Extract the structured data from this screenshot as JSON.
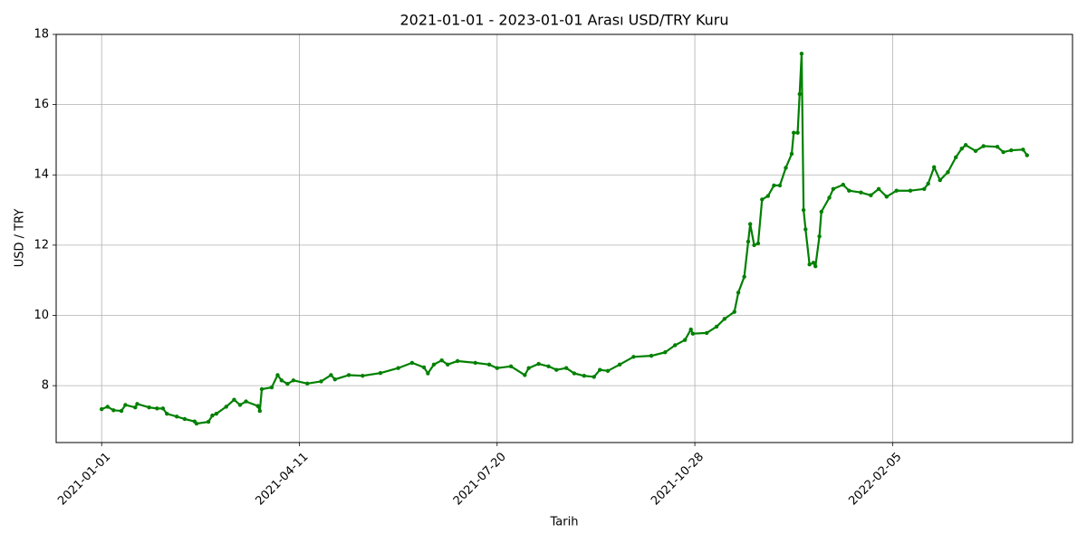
{
  "chart_data": {
    "type": "line",
    "title": "2021-01-01 - 2023-01-01 Arası USD/TRY Kuru",
    "xlabel": "Tarih",
    "ylabel": "USD / TRY",
    "x": [
      "2021-01-01",
      "2021-01-04",
      "2021-01-07",
      "2021-01-11",
      "2021-01-13",
      "2021-01-18",
      "2021-01-19",
      "2021-01-25",
      "2021-01-29",
      "2021-02-01",
      "2021-02-03",
      "2021-02-08",
      "2021-02-12",
      "2021-02-17",
      "2021-02-18",
      "2021-02-24",
      "2021-02-26",
      "2021-02-28",
      "2021-03-05",
      "2021-03-09",
      "2021-03-12",
      "2021-03-15",
      "2021-03-21",
      "2021-03-22",
      "2021-03-23",
      "2021-03-28",
      "2021-03-31",
      "2021-04-02",
      "2021-04-05",
      "2021-04-08",
      "2021-04-15",
      "2021-04-22",
      "2021-04-27",
      "2021-04-29",
      "2021-05-06",
      "2021-05-13",
      "2021-05-22",
      "2021-05-31",
      "2021-06-07",
      "2021-06-13",
      "2021-06-15",
      "2021-06-18",
      "2021-06-22",
      "2021-06-25",
      "2021-06-30",
      "2021-07-09",
      "2021-07-16",
      "2021-07-20",
      "2021-07-27",
      "2021-08-03",
      "2021-08-05",
      "2021-08-10",
      "2021-08-15",
      "2021-08-19",
      "2021-08-24",
      "2021-08-28",
      "2021-09-02",
      "2021-09-07",
      "2021-09-10",
      "2021-09-14",
      "2021-09-20",
      "2021-09-27",
      "2021-10-06",
      "2021-10-13",
      "2021-10-18",
      "2021-10-23",
      "2021-10-26",
      "2021-10-27",
      "2021-11-03",
      "2021-11-08",
      "2021-11-12",
      "2021-11-17",
      "2021-11-19",
      "2021-11-22",
      "2021-11-24",
      "2021-11-25",
      "2021-11-27",
      "2021-11-29",
      "2021-12-01",
      "2021-12-04",
      "2021-12-07",
      "2021-12-10",
      "2021-12-13",
      "2021-12-16",
      "2021-12-17",
      "2021-12-19",
      "2021-12-20",
      "2021-12-21",
      "2021-12-22",
      "2021-12-23",
      "2021-12-25",
      "2021-12-27",
      "2021-12-28",
      "2021-12-30",
      "2021-12-31",
      "2022-01-04",
      "2022-01-06",
      "2022-01-11",
      "2022-01-14",
      "2022-01-20",
      "2022-01-25",
      "2022-01-29",
      "2022-02-02",
      "2022-02-07",
      "2022-02-14",
      "2022-02-21",
      "2022-02-23",
      "2022-02-26",
      "2022-03-01",
      "2022-03-05",
      "2022-03-09",
      "2022-03-12",
      "2022-03-14",
      "2022-03-19",
      "2022-03-23",
      "2022-03-30",
      "2022-04-02",
      "2022-04-06",
      "2022-04-12",
      "2022-04-14"
    ],
    "series": [
      {
        "color": "#008000",
        "values": [
          7.33,
          7.4,
          7.3,
          7.28,
          7.45,
          7.38,
          7.48,
          7.38,
          7.35,
          7.35,
          7.2,
          7.12,
          7.05,
          6.98,
          6.92,
          6.97,
          7.15,
          7.2,
          7.4,
          7.6,
          7.45,
          7.55,
          7.42,
          7.28,
          7.9,
          7.95,
          8.3,
          8.15,
          8.05,
          8.15,
          8.06,
          8.12,
          8.3,
          8.18,
          8.3,
          8.28,
          8.36,
          8.5,
          8.65,
          8.52,
          8.35,
          8.6,
          8.72,
          8.6,
          8.7,
          8.65,
          8.6,
          8.5,
          8.55,
          8.3,
          8.5,
          8.62,
          8.55,
          8.45,
          8.5,
          8.35,
          8.28,
          8.25,
          8.45,
          8.42,
          8.6,
          8.82,
          8.85,
          8.95,
          9.15,
          9.3,
          9.6,
          9.48,
          9.5,
          9.68,
          9.9,
          10.1,
          10.65,
          11.1,
          12.1,
          12.6,
          12.0,
          12.05,
          13.3,
          13.4,
          13.7,
          13.7,
          14.2,
          14.6,
          15.2,
          15.2,
          16.3,
          17.45,
          13.0,
          12.45,
          11.45,
          11.5,
          11.4,
          12.25,
          12.95,
          13.35,
          13.6,
          13.72,
          13.55,
          13.5,
          13.42,
          13.6,
          13.38,
          13.55,
          13.55,
          13.6,
          13.75,
          14.22,
          13.85,
          14.08,
          14.5,
          14.75,
          14.85,
          14.68,
          14.82,
          14.8,
          14.65,
          14.7,
          14.72,
          14.56
        ]
      }
    ],
    "xlim": [
      "2020-12-09",
      "2022-05-07"
    ],
    "xticks": [
      "2021-01-01",
      "2021-04-11",
      "2021-07-20",
      "2021-10-28",
      "2022-02-05"
    ],
    "ylim": [
      6.38,
      18
    ],
    "yticks": [
      8,
      10,
      12,
      14,
      16,
      18
    ],
    "grid": true
  }
}
